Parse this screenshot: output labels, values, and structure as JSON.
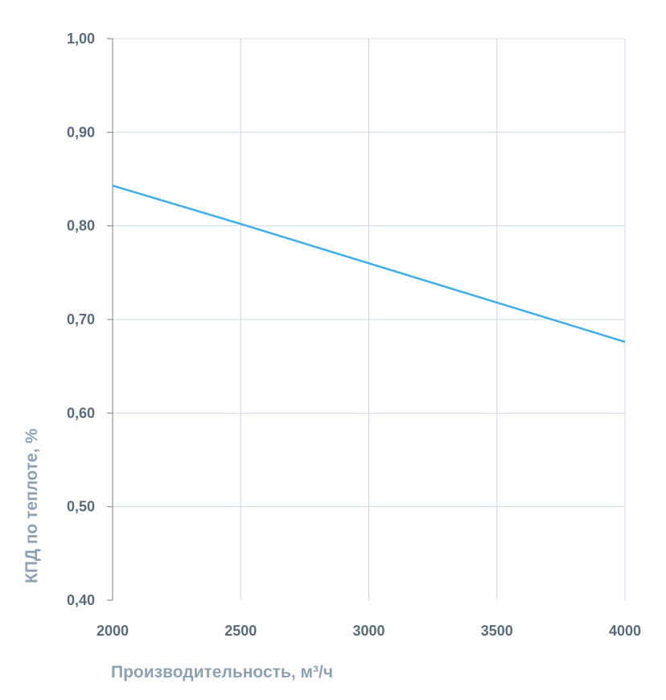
{
  "chart_data": {
    "type": "line",
    "title": "",
    "xlabel": "Производительность, м³/ч",
    "ylabel": "КПД по теплоте, %",
    "xlim": [
      2000,
      4000
    ],
    "ylim": [
      0.4,
      1.0
    ],
    "grid": true,
    "x_ticks": [
      2000,
      2500,
      3000,
      3500,
      4000
    ],
    "x_tick_labels": [
      "2000",
      "2500",
      "3000",
      "3500",
      "4000"
    ],
    "y_ticks": [
      0.4,
      0.5,
      0.6,
      0.7,
      0.8,
      0.9,
      1.0
    ],
    "y_tick_labels": [
      "0,40",
      "0,50",
      "0,60",
      "0,70",
      "0,80",
      "0,90",
      "1,00"
    ],
    "series": [
      {
        "name": "КПД",
        "color": "#3daee9",
        "x": [
          2000,
          2500,
          3000,
          3500,
          4000
        ],
        "values": [
          0.843,
          0.802,
          0.76,
          0.718,
          0.676
        ]
      }
    ],
    "colors": {
      "grid": "#c9d9ea",
      "axis": "#7f7f7f"
    }
  }
}
